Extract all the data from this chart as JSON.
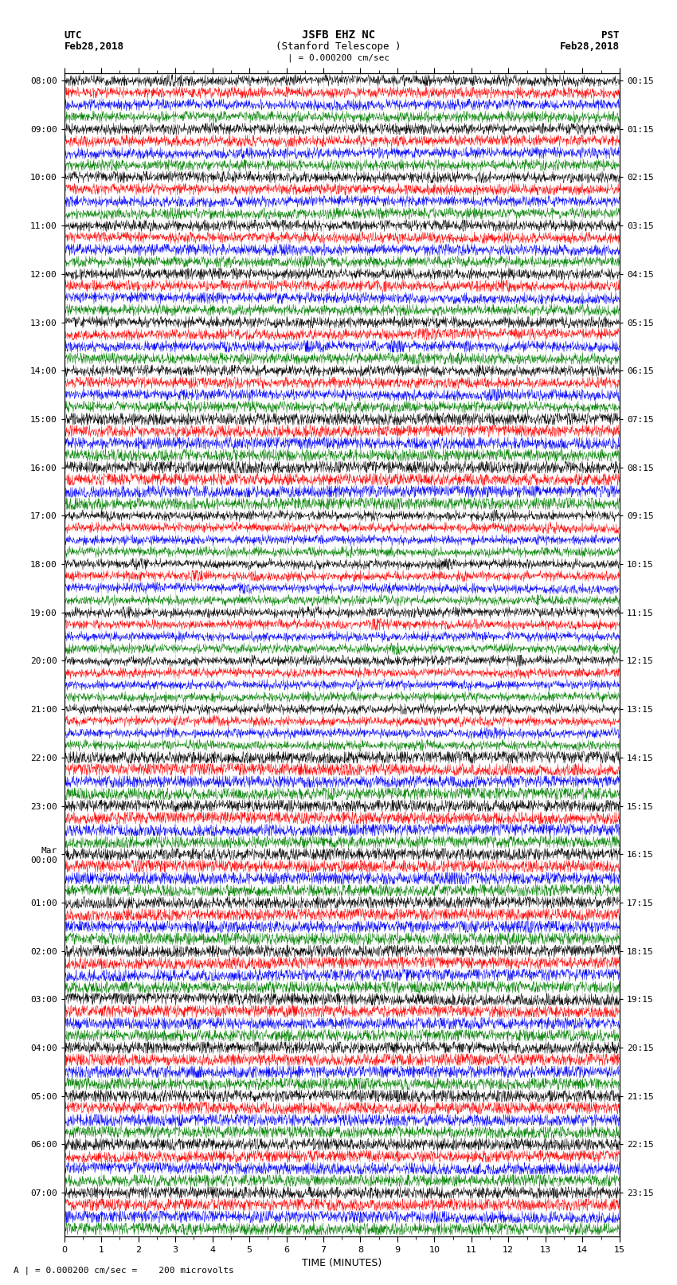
{
  "title_line1": "JSFB EHZ NC",
  "title_line2": "(Stanford Telescope )",
  "scale_label": "| = 0.000200 cm/sec",
  "bottom_label": "A | = 0.000200 cm/sec =    200 microvolts",
  "xlabel": "TIME (MINUTES)",
  "left_date_line1": "UTC",
  "left_date_line2": "Feb28,2018",
  "right_date_line1": "PST",
  "right_date_line2": "Feb28,2018",
  "left_times_utc": [
    "08:00",
    "09:00",
    "10:00",
    "11:00",
    "12:00",
    "13:00",
    "14:00",
    "15:00",
    "16:00",
    "17:00",
    "18:00",
    "19:00",
    "20:00",
    "21:00",
    "22:00",
    "23:00",
    "Mar\n00:00",
    "01:00",
    "02:00",
    "03:00",
    "04:00",
    "05:00",
    "06:00",
    "07:00"
  ],
  "right_times_pst": [
    "00:15",
    "01:15",
    "02:15",
    "03:15",
    "04:15",
    "05:15",
    "06:15",
    "07:15",
    "08:15",
    "09:15",
    "10:15",
    "11:15",
    "12:15",
    "13:15",
    "14:15",
    "15:15",
    "16:15",
    "17:15",
    "18:15",
    "19:15",
    "20:15",
    "21:15",
    "22:15",
    "23:15"
  ],
  "colors": [
    "black",
    "red",
    "blue",
    "green"
  ],
  "bg_color": "white",
  "n_hours": 24,
  "traces_per_hour": 4,
  "minutes": 15,
  "samples_per_trace": 1800,
  "amplitude_scale": 0.42,
  "noise_base": 0.18,
  "figsize": [
    8.5,
    16.13
  ],
  "dpi": 100
}
